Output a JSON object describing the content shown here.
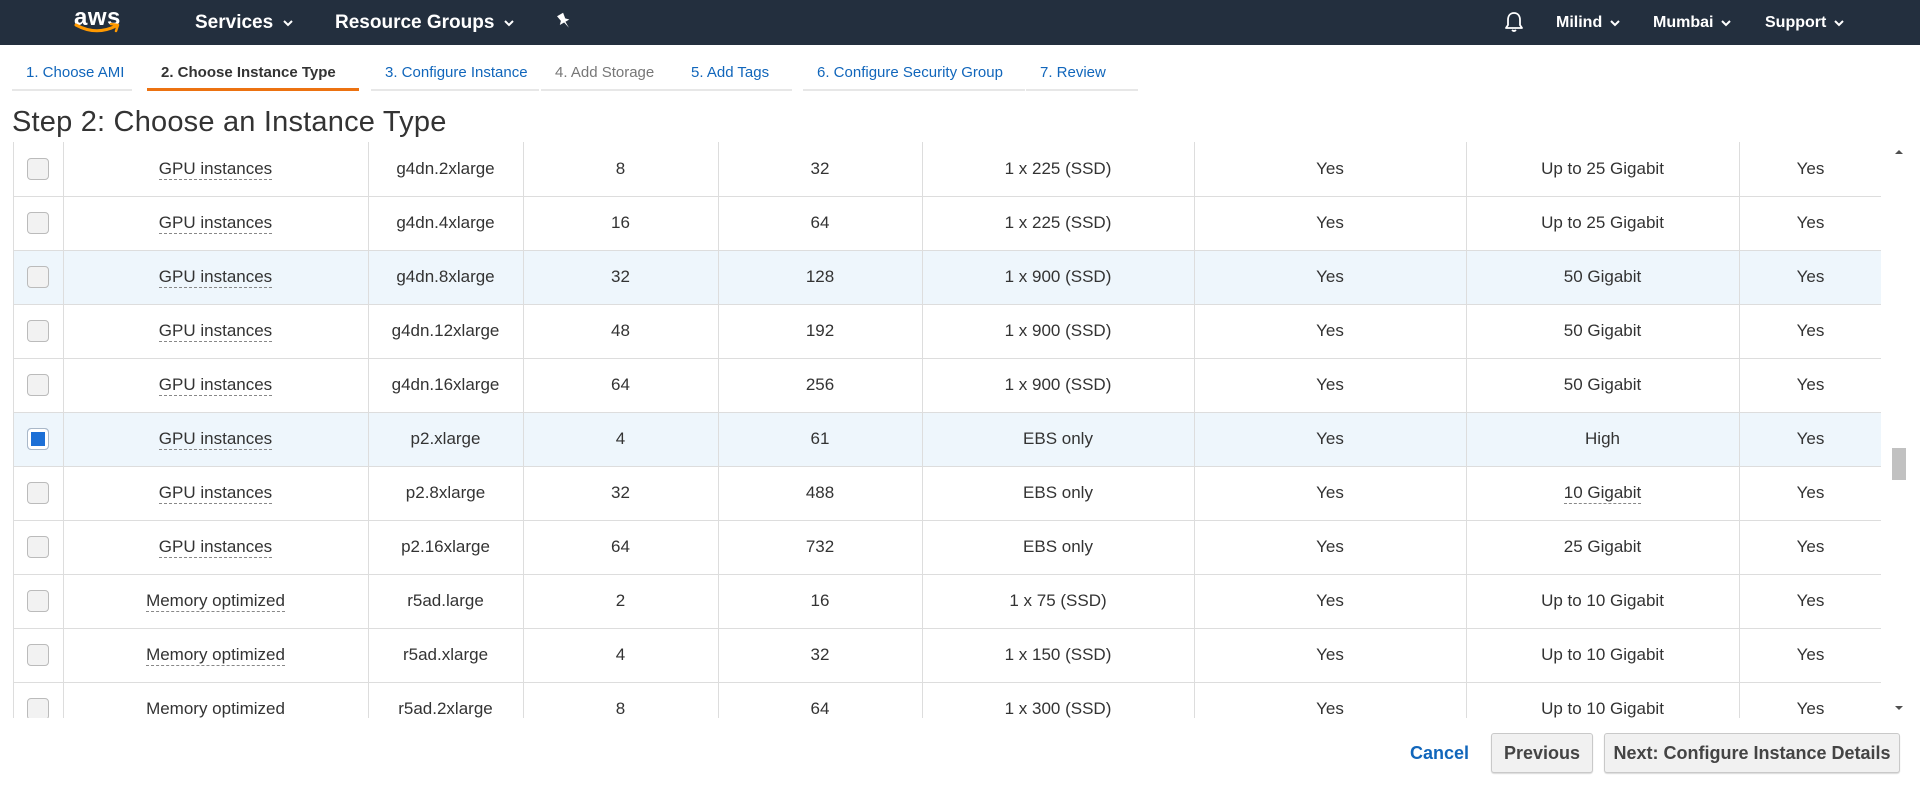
{
  "colors": {
    "nav_bg": "#232f3e",
    "accent": "#ec7211",
    "link": "#1166bb",
    "selected_row": "#eef6fc",
    "checkbox_checked": "#1c6fd6"
  },
  "nav": {
    "logo_text": "aws",
    "services": "Services",
    "resource_groups": "Resource Groups",
    "user": "Milind",
    "region": "Mumbai",
    "support": "Support",
    "icons": [
      "chevron-down-icon",
      "pin-icon",
      "bell-icon",
      "aws-smile-icon"
    ]
  },
  "steps": [
    {
      "label": "1. Choose AMI",
      "state": "link"
    },
    {
      "label": "2. Choose Instance Type",
      "state": "active"
    },
    {
      "label": "3. Configure Instance",
      "state": "link"
    },
    {
      "label": "4. Add Storage",
      "state": "disabled"
    },
    {
      "label": "5. Add Tags",
      "state": "link"
    },
    {
      "label": "6. Configure Security Group",
      "state": "link"
    },
    {
      "label": "7. Review",
      "state": "link"
    }
  ],
  "page_title": "Step 2: Choose an Instance Type",
  "rows": [
    {
      "checked": false,
      "family": "GPU instances",
      "type": "g4dn.2xlarge",
      "vcpus": "8",
      "memory": "32",
      "storage": "1 x 225 (SSD)",
      "ebs": "Yes",
      "network": "Up to 25 Gigabit",
      "ipv6": "Yes"
    },
    {
      "checked": false,
      "family": "GPU instances",
      "type": "g4dn.4xlarge",
      "vcpus": "16",
      "memory": "64",
      "storage": "1 x 225 (SSD)",
      "ebs": "Yes",
      "network": "Up to 25 Gigabit",
      "ipv6": "Yes"
    },
    {
      "checked": false,
      "family": "GPU instances",
      "type": "g4dn.8xlarge",
      "vcpus": "32",
      "memory": "128",
      "storage": "1 x 900 (SSD)",
      "ebs": "Yes",
      "network": "50 Gigabit",
      "ipv6": "Yes"
    },
    {
      "checked": false,
      "family": "GPU instances",
      "type": "g4dn.12xlarge",
      "vcpus": "48",
      "memory": "192",
      "storage": "1 x 900 (SSD)",
      "ebs": "Yes",
      "network": "50 Gigabit",
      "ipv6": "Yes"
    },
    {
      "checked": false,
      "family": "GPU instances",
      "type": "g4dn.16xlarge",
      "vcpus": "64",
      "memory": "256",
      "storage": "1 x 900 (SSD)",
      "ebs": "Yes",
      "network": "50 Gigabit",
      "ipv6": "Yes"
    },
    {
      "checked": true,
      "family": "GPU instances",
      "type": "p2.xlarge",
      "vcpus": "4",
      "memory": "61",
      "storage": "EBS only",
      "ebs": "Yes",
      "network": "High",
      "ipv6": "Yes"
    },
    {
      "checked": false,
      "family": "GPU instances",
      "type": "p2.8xlarge",
      "vcpus": "32",
      "memory": "488",
      "storage": "EBS only",
      "ebs": "Yes",
      "network": "10 Gigabit",
      "ipv6": "Yes"
    },
    {
      "checked": false,
      "family": "GPU instances",
      "type": "p2.16xlarge",
      "vcpus": "64",
      "memory": "732",
      "storage": "EBS only",
      "ebs": "Yes",
      "network": "25 Gigabit",
      "ipv6": "Yes"
    },
    {
      "checked": false,
      "family": "Memory optimized",
      "type": "r5ad.large",
      "vcpus": "2",
      "memory": "16",
      "storage": "1 x 75 (SSD)",
      "ebs": "Yes",
      "network": "Up to 10 Gigabit",
      "ipv6": "Yes"
    },
    {
      "checked": false,
      "family": "Memory optimized",
      "type": "r5ad.xlarge",
      "vcpus": "4",
      "memory": "32",
      "storage": "1 x 150 (SSD)",
      "ebs": "Yes",
      "network": "Up to 10 Gigabit",
      "ipv6": "Yes"
    },
    {
      "checked": false,
      "family": "Memory optimized",
      "type": "r5ad.2xlarge",
      "vcpus": "8",
      "memory": "64",
      "storage": "1 x 300 (SSD)",
      "ebs": "Yes",
      "network": "Up to 10 Gigabit",
      "ipv6": "Yes"
    }
  ],
  "footer": {
    "cancel": "Cancel",
    "previous": "Previous",
    "next": "Next: Configure Instance Details"
  }
}
